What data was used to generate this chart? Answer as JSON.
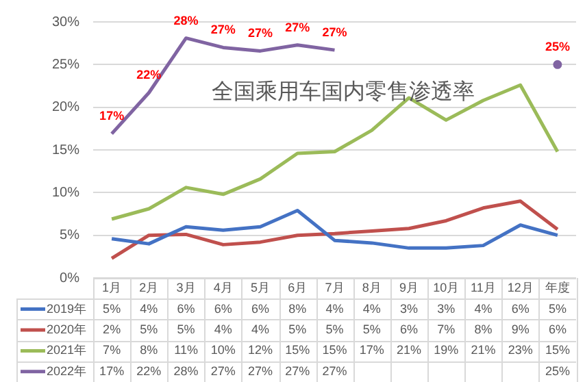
{
  "chart_data": {
    "type": "line",
    "title": "全国乘用车国内零售渗透率",
    "categories": [
      "1月",
      "2月",
      "3月",
      "4月",
      "5月",
      "6月",
      "7月",
      "8月",
      "9月",
      "10月",
      "11月",
      "12月",
      "年度"
    ],
    "series": [
      {
        "name": "2019年",
        "color": "#4472c4",
        "values": [
          4.6,
          4.0,
          6.0,
          5.6,
          6.0,
          7.9,
          4.4,
          4.1,
          3.5,
          3.5,
          3.8,
          6.2,
          5.0
        ],
        "value_labels": [
          "5%",
          "4%",
          "6%",
          "6%",
          "6%",
          "8%",
          "4%",
          "4%",
          "3%",
          "3%",
          "4%",
          "6%",
          "5%"
        ]
      },
      {
        "name": "2020年",
        "color": "#c0504d",
        "values": [
          2.3,
          5.0,
          5.1,
          3.9,
          4.2,
          5.0,
          5.2,
          5.5,
          5.8,
          6.7,
          8.2,
          9.0,
          5.7
        ],
        "value_labels": [
          "2%",
          "5%",
          "5%",
          "4%",
          "4%",
          "5%",
          "5%",
          "5%",
          "6%",
          "7%",
          "8%",
          "9%",
          "6%"
        ]
      },
      {
        "name": "2021年",
        "color": "#9bbb59",
        "values": [
          6.9,
          8.1,
          10.6,
          9.8,
          11.6,
          14.6,
          14.8,
          17.3,
          21.1,
          18.5,
          20.8,
          22.6,
          14.8
        ],
        "value_labels": [
          "7%",
          "8%",
          "11%",
          "10%",
          "12%",
          "15%",
          "15%",
          "17%",
          "21%",
          "19%",
          "21%",
          "23%",
          "15%"
        ]
      },
      {
        "name": "2022年",
        "color": "#8064a2",
        "values": [
          16.9,
          21.7,
          28.1,
          27.0,
          26.6,
          27.3,
          26.7,
          null,
          null,
          null,
          null,
          null,
          25
        ],
        "value_labels": [
          "17%",
          "22%",
          "28%",
          "27%",
          "27%",
          "27%",
          "27%",
          null,
          null,
          null,
          null,
          null,
          "25%"
        ]
      }
    ],
    "annotations": [
      {
        "text": "17%",
        "x": "1月",
        "y": 16.9
      },
      {
        "text": "22%",
        "x": "2月",
        "y": 21.7
      },
      {
        "text": "28%",
        "x": "3月",
        "y": 28.1
      },
      {
        "text": "27%",
        "x": "4月",
        "y": 27.0
      },
      {
        "text": "27%",
        "x": "5月",
        "y": 26.6
      },
      {
        "text": "27%",
        "x": "6月",
        "y": 27.3
      },
      {
        "text": "27%",
        "x": "7月",
        "y": 26.7
      },
      {
        "text": "25%",
        "x": "年度",
        "y": 25
      }
    ],
    "ylim": [
      0,
      30
    ],
    "yticks": [
      {
        "value": 0,
        "label": "0%"
      },
      {
        "value": 5,
        "label": "5%"
      },
      {
        "value": 10,
        "label": "10%"
      },
      {
        "value": 15,
        "label": "15%"
      },
      {
        "value": 20,
        "label": "20%"
      },
      {
        "value": 25,
        "label": "25%"
      },
      {
        "value": 30,
        "label": "30%"
      }
    ],
    "grid": "y",
    "legend": "bottom",
    "marker": "none",
    "line_style": "solid"
  }
}
